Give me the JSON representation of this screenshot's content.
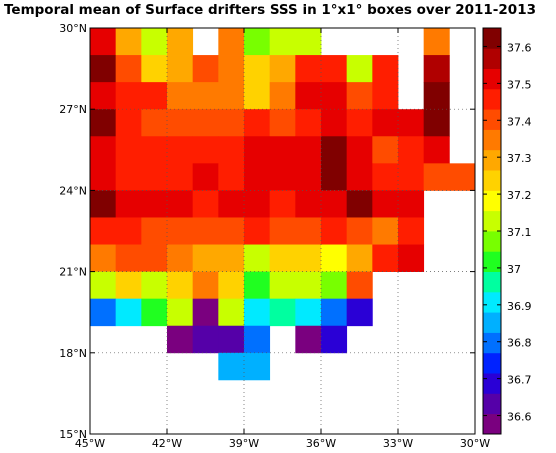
{
  "chart_data": {
    "type": "heatmap",
    "title": "Temporal mean of Surface drifters SSS in 1°x1° boxes over 2011-2013",
    "xlabel": "",
    "ylabel": "",
    "x_range": [
      -45,
      -30
    ],
    "y_range": [
      15,
      30
    ],
    "cell_size_deg": 1,
    "x_ticks": [
      -45,
      -42,
      -39,
      -36,
      -33,
      -30
    ],
    "x_tick_labels": [
      "45°W",
      "42°W",
      "39°W",
      "36°W",
      "33°W",
      "30°W"
    ],
    "y_ticks": [
      15,
      18,
      21,
      24,
      27,
      30
    ],
    "y_tick_labels": [
      "15°N",
      "18°N",
      "21°N",
      "24°N",
      "27°N",
      "30°N"
    ],
    "grid": "dotted",
    "colorbar": {
      "min": 36.55,
      "max": 37.65,
      "ticks": [
        36.6,
        36.7,
        36.8,
        36.9,
        37,
        37.1,
        37.2,
        37.3,
        37.4,
        37.5,
        37.6
      ],
      "tick_labels": [
        "36.6",
        "36.7",
        "36.8",
        "36.9",
        "37",
        "37.1",
        "37.2",
        "37.3",
        "37.4",
        "37.5",
        "37.6"
      ],
      "colors": [
        "#7a007f",
        "#5500a8",
        "#2a00d6",
        "#0022ff",
        "#0070ff",
        "#00b0ff",
        "#00eaff",
        "#00ffa0",
        "#20ff20",
        "#78ff00",
        "#c8ff00",
        "#ffff00",
        "#ffd200",
        "#ffa800",
        "#ff7a00",
        "#ff4c00",
        "#ff1e00",
        "#e60000",
        "#b00000",
        "#800000"
      ]
    },
    "rows_from_north": [
      {
        "lat_top": 30,
        "west": -45,
        "values": [
          37.5,
          37.3,
          37.15,
          37.3,
          null,
          37.35,
          37.05,
          37.1,
          37.15,
          null,
          null,
          null,
          null,
          37.35,
          null
        ]
      },
      {
        "lat_top": 29,
        "west": -45,
        "values": [
          37.6,
          37.4,
          37.25,
          37.3,
          37.4,
          37.35,
          37.25,
          37.3,
          37.45,
          37.45,
          37.15,
          37.45,
          null,
          37.55,
          null
        ]
      },
      {
        "lat_top": 28,
        "west": -45,
        "values": [
          37.5,
          37.45,
          37.45,
          37.35,
          37.35,
          37.35,
          37.25,
          37.35,
          37.5,
          37.5,
          37.4,
          37.45,
          null,
          37.6,
          null
        ]
      },
      {
        "lat_top": 27,
        "west": -45,
        "values": [
          37.6,
          37.45,
          37.4,
          37.4,
          37.4,
          37.4,
          37.45,
          37.4,
          37.45,
          37.5,
          37.45,
          37.5,
          37.5,
          37.6,
          null
        ]
      },
      {
        "lat_top": 26,
        "west": -45,
        "values": [
          37.5,
          37.45,
          37.45,
          37.45,
          37.45,
          37.45,
          37.5,
          37.5,
          37.5,
          37.6,
          37.5,
          37.4,
          37.45,
          37.5,
          null
        ]
      },
      {
        "lat_top": 25,
        "west": -45,
        "values": [
          37.5,
          37.45,
          37.45,
          37.45,
          37.5,
          37.45,
          37.5,
          37.5,
          37.5,
          37.6,
          37.5,
          37.45,
          37.45,
          37.4,
          37.4
        ]
      },
      {
        "lat_top": 24,
        "west": -45,
        "values": [
          37.6,
          37.5,
          37.5,
          37.5,
          37.45,
          37.5,
          37.5,
          37.45,
          37.5,
          37.5,
          37.6,
          37.5,
          37.5,
          null,
          null
        ]
      },
      {
        "lat_top": 23,
        "west": -45,
        "values": [
          37.45,
          37.45,
          37.4,
          37.4,
          37.4,
          37.4,
          37.45,
          37.4,
          37.4,
          37.45,
          37.4,
          37.35,
          37.45,
          null,
          null
        ]
      },
      {
        "lat_top": 22,
        "west": -45,
        "values": [
          37.35,
          37.4,
          37.4,
          37.35,
          37.3,
          37.3,
          37.15,
          37.25,
          37.25,
          37.2,
          37.3,
          37.45,
          37.5,
          null,
          null
        ]
      },
      {
        "lat_top": 21,
        "west": -45,
        "values": [
          37.15,
          37.25,
          37.15,
          37.25,
          37.35,
          37.25,
          37.0,
          37.1,
          37.1,
          37.05,
          37.4,
          null,
          null,
          null,
          null
        ]
      },
      {
        "lat_top": 20,
        "west": -45,
        "values": [
          36.8,
          36.9,
          37.0,
          37.1,
          36.6,
          37.1,
          36.9,
          36.95,
          36.9,
          36.8,
          36.7,
          null,
          null,
          null,
          null
        ]
      },
      {
        "lat_top": 19,
        "west": -45,
        "values": [
          null,
          null,
          null,
          36.6,
          36.65,
          36.65,
          36.8,
          null,
          36.6,
          36.7,
          null,
          null,
          null,
          null,
          null
        ]
      },
      {
        "lat_top": 18,
        "west": -45,
        "values": [
          null,
          null,
          null,
          null,
          null,
          36.85,
          36.85,
          null,
          null,
          null,
          null,
          null,
          null,
          null,
          null
        ]
      }
    ]
  }
}
